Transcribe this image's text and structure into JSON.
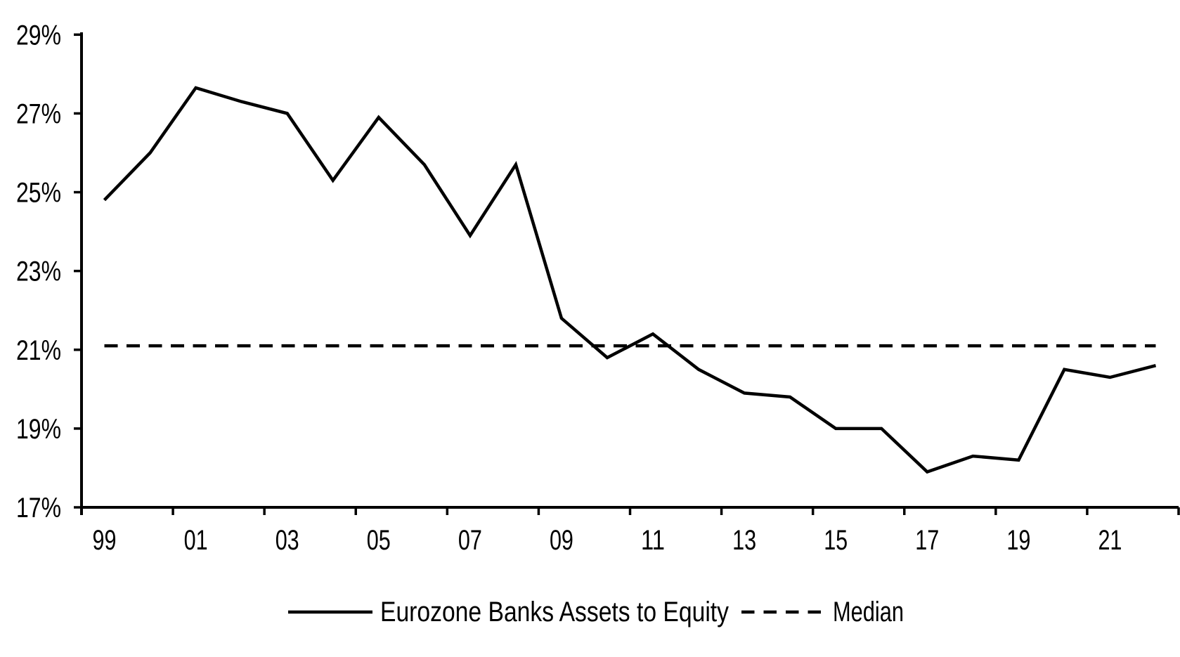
{
  "chart_data": {
    "type": "line",
    "title": "",
    "background_color": "#ffffff",
    "line_color": "#000000",
    "text_color": "#000000",
    "grid": false,
    "x": [
      1999,
      2000,
      2001,
      2002,
      2003,
      2004,
      2005,
      2006,
      2007,
      2008,
      2009,
      2010,
      2011,
      2012,
      2013,
      2014,
      2015,
      2016,
      2017,
      2018,
      2019,
      2020,
      2021,
      2022
    ],
    "x_tick_labels": [
      "99",
      "01",
      "03",
      "05",
      "07",
      "09",
      "11",
      "13",
      "15",
      "17",
      "19",
      "21"
    ],
    "y_axis": {
      "min": 17,
      "max": 29,
      "tick_step": 2,
      "tick_labels": [
        "17%",
        "19%",
        "21%",
        "23%",
        "25%",
        "27%",
        "29%"
      ],
      "unit": "%"
    },
    "series": [
      {
        "name": "Eurozone Banks Assets to Equity",
        "style": "solid",
        "color": "#000000",
        "values": [
          24.8,
          26.0,
          27.65,
          27.3,
          27.0,
          25.3,
          26.9,
          25.7,
          23.9,
          25.7,
          21.8,
          20.8,
          21.4,
          20.5,
          19.9,
          19.8,
          19.0,
          19.0,
          17.9,
          18.3,
          18.2,
          20.5,
          20.3,
          20.6
        ]
      },
      {
        "name": "Median",
        "style": "dashed",
        "color": "#000000",
        "constant": 21.1
      }
    ],
    "legend": {
      "position": "bottom-center",
      "entries": [
        {
          "label": "Eurozone Banks Assets to Equity",
          "style": "solid"
        },
        {
          "label": "Median",
          "style": "dashed"
        }
      ]
    }
  }
}
